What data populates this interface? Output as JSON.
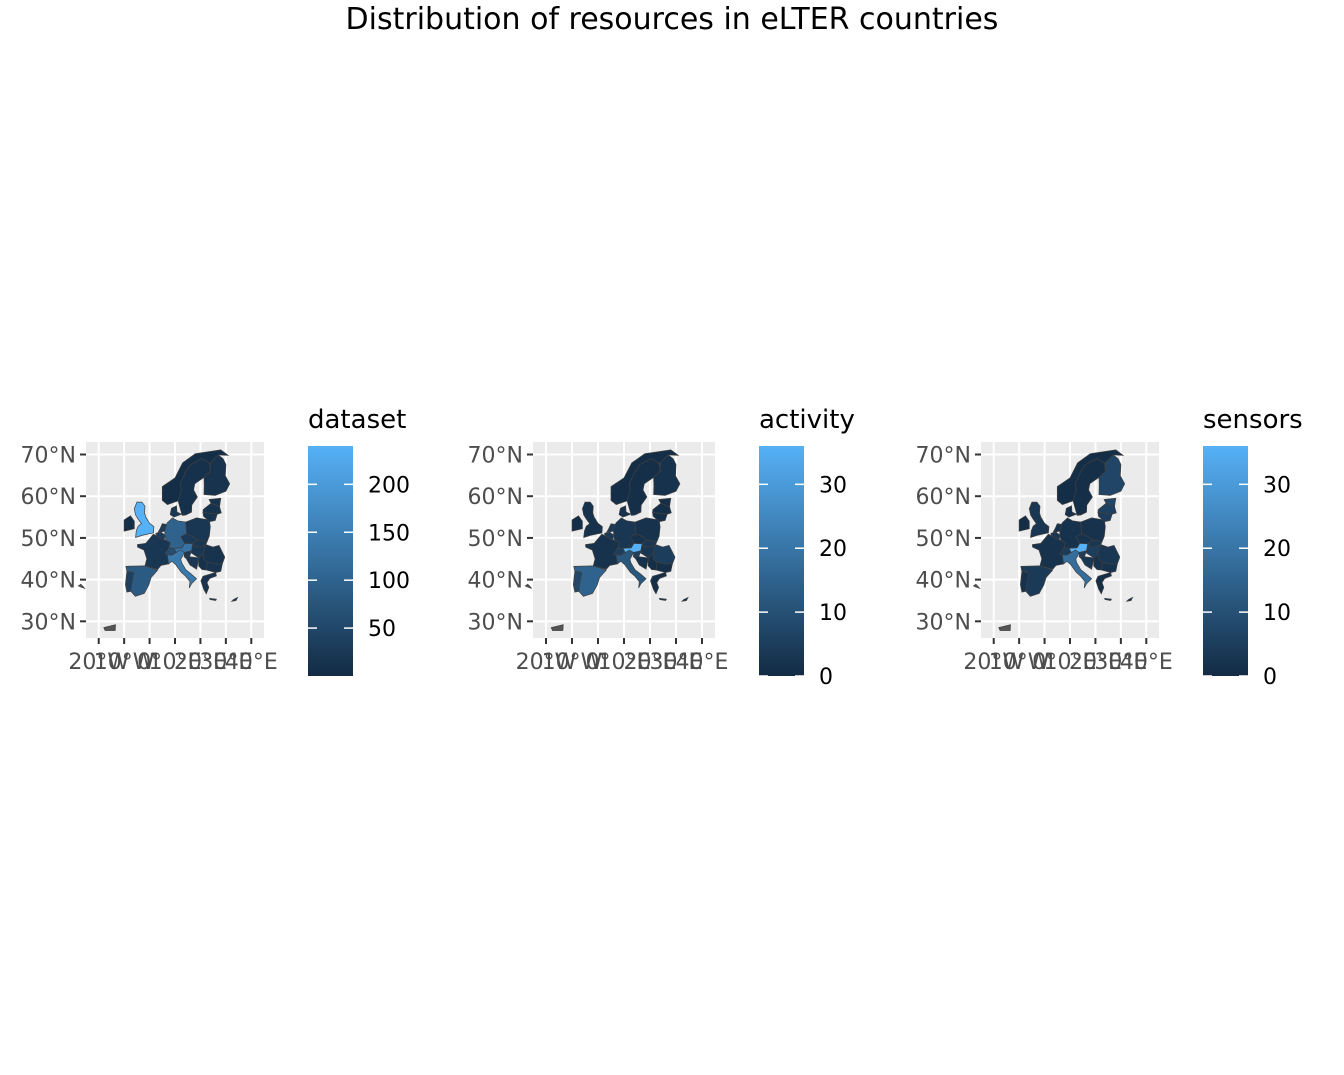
{
  "title": "Distribution of resources in eLTER countries",
  "colors": {
    "panel_background": "#ebebeb",
    "grid": "#ffffff",
    "scale_low": "#132b43",
    "scale_high": "#56b1f7",
    "country_border": "#3f3f3f"
  },
  "maps": [
    {
      "legend_title": "dataset",
      "legend_breaks": [
        "50",
        "100",
        "150",
        "200"
      ],
      "lat_labels": [
        "70°N",
        "60°N",
        "50°N",
        "40°N",
        "30°N"
      ],
      "lon_labels": [
        "20°W",
        "10°W",
        "0°",
        "10°E",
        "20°E",
        "30°E",
        "40°E"
      ],
      "countries": {
        "UK": 240,
        "FR": 20,
        "ES": 85,
        "PT": 40,
        "BE": 30,
        "NL": 30,
        "DE": 100,
        "CH": 60,
        "AT": 130,
        "IT": 140,
        "SI": 25,
        "CZ": 25,
        "PL": 20,
        "SK": 20,
        "HU": 20,
        "RO": 15,
        "BG": 15,
        "GR": 15,
        "DK": 25,
        "SE": 10,
        "FI": 15,
        "LT": 15,
        "LV": 15,
        "EE": 15,
        "HR": 20,
        "CY": 10,
        "RS": 10
      }
    },
    {
      "legend_title": "activity",
      "legend_breaks": [
        "0",
        "10",
        "20",
        "30"
      ],
      "lat_labels": [
        "70°N",
        "60°N",
        "50°N",
        "40°N",
        "30°N"
      ],
      "lon_labels": [
        "20°W",
        "10°W",
        "0°",
        "10°E",
        "20°E",
        "30°E",
        "40°E"
      ],
      "countries": {
        "UK": 2,
        "FR": 2,
        "ES": 15,
        "PT": 8,
        "BE": 4,
        "NL": 4,
        "DE": 3,
        "CH": 5,
        "AT": 36,
        "IT": 12,
        "SI": 6,
        "CZ": 2,
        "PL": 2,
        "SK": 3,
        "HU": 3,
        "RO": 5,
        "BG": 1,
        "GR": 1,
        "DK": 2,
        "SE": 1,
        "FI": 2,
        "LT": 1,
        "LV": 1,
        "EE": 1,
        "HR": 2,
        "CY": 1,
        "RS": 1
      }
    },
    {
      "legend_title": "sensors",
      "legend_breaks": [
        "0",
        "10",
        "20",
        "30"
      ],
      "lat_labels": [
        "70°N",
        "60°N",
        "50°N",
        "40°N",
        "30°N"
      ],
      "lon_labels": [
        "20°W",
        "10°W",
        "0°",
        "10°E",
        "20°E",
        "30°E",
        "40°E"
      ],
      "countries": {
        "UK": 3,
        "FR": 2,
        "ES": 4,
        "PT": 2,
        "BE": 3,
        "NL": 2,
        "DE": 2,
        "CH": 4,
        "AT": 36,
        "IT": 18,
        "SI": 5,
        "CZ": 2,
        "PL": 2,
        "SK": 3,
        "HU": 5,
        "RO": 3,
        "BG": 2,
        "GR": 1,
        "DK": 2,
        "SE": 1,
        "FI": 7,
        "LT": 5,
        "LV": 6,
        "EE": 7,
        "HR": 3,
        "CY": 1,
        "RS": 2
      }
    }
  ]
}
